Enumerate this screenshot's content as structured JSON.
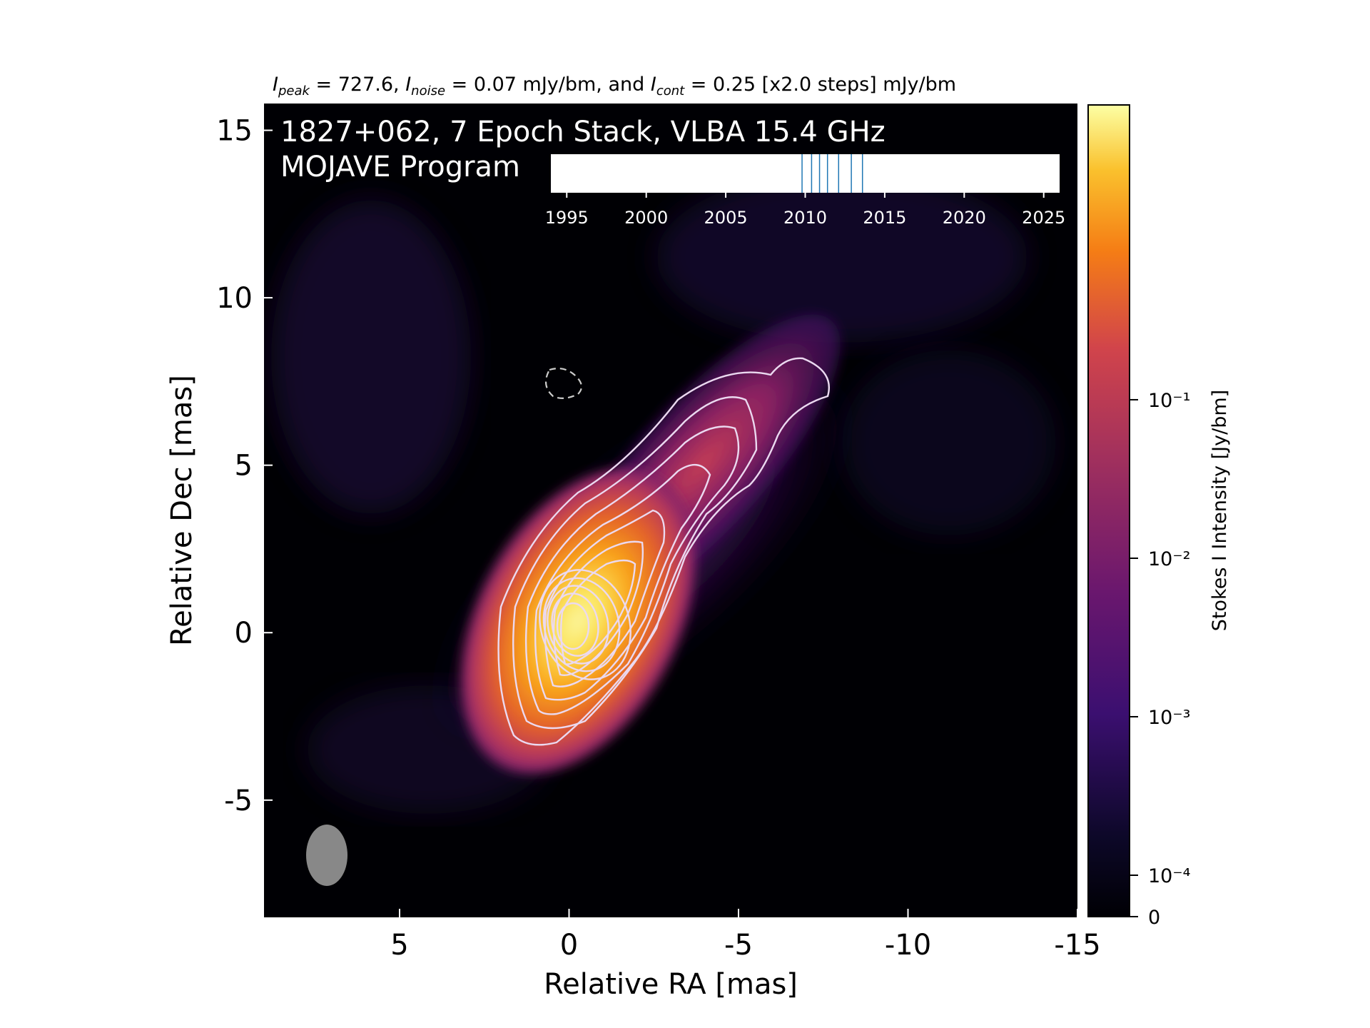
{
  "header": {
    "top_line": {
      "i_peak_symbol": "I",
      "i_peak_sub": "peak",
      "i_peak_text": " = 727.6, ",
      "i_noise_symbol": "I",
      "i_noise_sub": "noise",
      "i_noise_text": " = 0.07 mJy/bm, and ",
      "i_cont_symbol": "I",
      "i_cont_sub": "cont",
      "i_cont_text": " = 0.25 [x2.0 steps] mJy/bm"
    }
  },
  "chart_data": [
    {
      "type": "heatmap",
      "title": "1827+062, 7 Epoch Stack, VLBA 15.4 GHz",
      "subtitle": "MOJAVE Program",
      "xlabel": "Relative RA [mas]",
      "ylabel": "Relative Dec [mas]",
      "xlim": [
        9,
        -15
      ],
      "ylim": [
        -8.5,
        15.8
      ],
      "x_ticks": [
        5,
        0,
        -5,
        -10,
        -15
      ],
      "x_tick_labels": [
        "5",
        "0",
        "-5",
        "-10",
        "-15"
      ],
      "y_ticks": [
        15,
        10,
        5,
        0,
        -5
      ],
      "y_tick_labels": [
        "15",
        "10",
        "5",
        "0",
        "-5"
      ],
      "colormap": "inferno",
      "colorbar": {
        "label": "Stokes I Intensity [Jy/bm]",
        "scale": "log",
        "ticks": [
          0.1,
          0.01,
          0.001,
          0.0001,
          0
        ],
        "tick_labels": [
          "10⁻¹",
          "10⁻²",
          "10⁻³",
          "10⁻⁴",
          "0"
        ]
      },
      "peak_intensity": 727.6,
      "noise_mJy_per_beam": 0.07,
      "lowest_contour_mJy_per_beam": 0.25,
      "contour_step_factor": 2.0,
      "core_position": [
        0,
        0
      ],
      "jet_extent_end": [
        -7.5,
        7
      ],
      "beam": {
        "ra": 7.2,
        "dec": -6.8,
        "major_mas": 1.8,
        "minor_mas": 1.2,
        "color": "#888888"
      },
      "negative_contour": {
        "ra": 0.2,
        "dec": 7.3
      }
    },
    {
      "type": "scatter",
      "title": "",
      "xlabel": "",
      "x_ticks": [
        1995,
        2000,
        2005,
        2010,
        2015,
        2020,
        2025
      ],
      "x_tick_labels": [
        "1995",
        "2000",
        "2005",
        "2010",
        "2015",
        "2020",
        "2025"
      ],
      "xlim": [
        1994,
        2026
      ],
      "epochs": [
        2009.8,
        2010.4,
        2010.9,
        2011.4,
        2012.1,
        2012.9,
        2013.6
      ],
      "epoch_line_color": "#1f77b4"
    }
  ]
}
